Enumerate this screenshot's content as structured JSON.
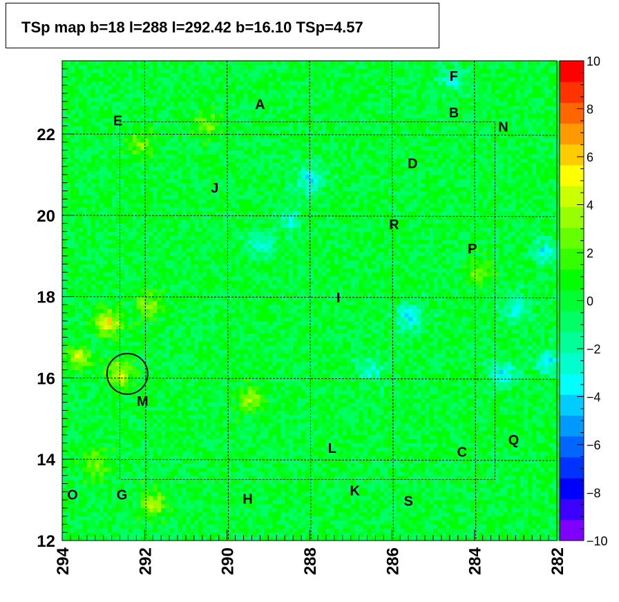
{
  "title": "TSp map b=18 l=288 l=292.42 b=16.10 TSp=4.57",
  "chart_data": {
    "type": "heatmap",
    "title": "TSp map b=18 l=288 l=292.42 b=16.10 TSp=4.57",
    "xlim": [
      294,
      282
    ],
    "ylim": [
      12,
      23.8
    ],
    "x_reversed": true,
    "x_ticks": [
      "294",
      "292",
      "290",
      "288",
      "286",
      "284",
      "282"
    ],
    "y_ticks": [
      "12",
      "14",
      "16",
      "18",
      "20",
      "22"
    ],
    "z_range": [
      -10,
      10
    ],
    "colorbar_ticks": [
      "10",
      "8",
      "6",
      "4",
      "2",
      "0",
      "−2",
      "−4",
      "−6",
      "−8",
      "−10"
    ],
    "palette": [
      "#7f00ff",
      "#3c00ff",
      "#0000ff",
      "#0033ff",
      "#0066ff",
      "#0099ff",
      "#00ccff",
      "#00ffff",
      "#00ffcc",
      "#00ff99",
      "#00ff66",
      "#00ff33",
      "#00ff00",
      "#33ff00",
      "#66ff00",
      "#99ff00",
      "#ccff00",
      "#ffff00",
      "#ffcc00",
      "#ff9900",
      "#ff6600",
      "#ff3300",
      "#ff0000"
    ],
    "background_value": 0,
    "hotspots": [
      {
        "l": 292.9,
        "b": 17.4,
        "value": 5.5
      },
      {
        "l": 293.6,
        "b": 16.5,
        "value": 4
      },
      {
        "l": 292.6,
        "b": 16.1,
        "value": 4.5
      },
      {
        "l": 289.4,
        "b": 15.5,
        "value": 3.5
      },
      {
        "l": 291.8,
        "b": 12.9,
        "value": 3.5
      },
      {
        "l": 291.9,
        "b": 17.8,
        "value": 3
      },
      {
        "l": 290.5,
        "b": 22.2,
        "value": 3
      },
      {
        "l": 283.9,
        "b": 18.6,
        "value": 3
      },
      {
        "l": 292.1,
        "b": 21.7,
        "value": 2.5
      },
      {
        "l": 293.2,
        "b": 13.9,
        "value": 3
      }
    ],
    "coldspots": [
      {
        "l": 285.6,
        "b": 17.5,
        "value": -3.5
      },
      {
        "l": 288.0,
        "b": 20.9,
        "value": -4
      },
      {
        "l": 283.3,
        "b": 16.1,
        "value": -3.5
      },
      {
        "l": 284.5,
        "b": 23.3,
        "value": -2.5
      },
      {
        "l": 289.2,
        "b": 19.3,
        "value": -3
      },
      {
        "l": 282.2,
        "b": 16.4,
        "value": -3.5
      },
      {
        "l": 282.3,
        "b": 19.1,
        "value": -3
      },
      {
        "l": 286.5,
        "b": 16.2,
        "value": -2.5
      },
      {
        "l": 283.0,
        "b": 17.7,
        "value": -3
      },
      {
        "l": 288.5,
        "b": 19.9,
        "value": -2.5
      }
    ],
    "field_labels": [
      {
        "text": "A",
        "l": 289.2,
        "b": 22.7
      },
      {
        "text": "E",
        "l": 292.65,
        "b": 22.3
      },
      {
        "text": "F",
        "l": 284.5,
        "b": 23.4
      },
      {
        "text": "B",
        "l": 284.5,
        "b": 22.5
      },
      {
        "text": "N",
        "l": 283.3,
        "b": 22.15
      },
      {
        "text": "D",
        "l": 285.5,
        "b": 21.25
      },
      {
        "text": "J",
        "l": 290.3,
        "b": 20.65
      },
      {
        "text": "R",
        "l": 285.95,
        "b": 19.75
      },
      {
        "text": "P",
        "l": 284.05,
        "b": 19.15
      },
      {
        "text": "I",
        "l": 287.3,
        "b": 17.95
      },
      {
        "text": "M",
        "l": 292.05,
        "b": 15.4
      },
      {
        "text": "Q",
        "l": 283.05,
        "b": 14.45
      },
      {
        "text": "L",
        "l": 287.45,
        "b": 14.25
      },
      {
        "text": "C",
        "l": 284.3,
        "b": 14.15
      },
      {
        "text": "O",
        "l": 293.75,
        "b": 13.1
      },
      {
        "text": "G",
        "l": 292.55,
        "b": 13.1
      },
      {
        "text": "H",
        "l": 289.5,
        "b": 13.0
      },
      {
        "text": "K",
        "l": 286.9,
        "b": 13.2
      },
      {
        "text": "S",
        "l": 285.6,
        "b": 12.95
      }
    ],
    "grid_b": [
      14,
      16,
      18,
      20,
      22
    ],
    "grid_l": [
      292,
      290,
      288,
      286,
      284
    ],
    "marker": {
      "type": "circle",
      "l": 292.42,
      "b": 16.1,
      "radius_deg": 0.5
    }
  }
}
